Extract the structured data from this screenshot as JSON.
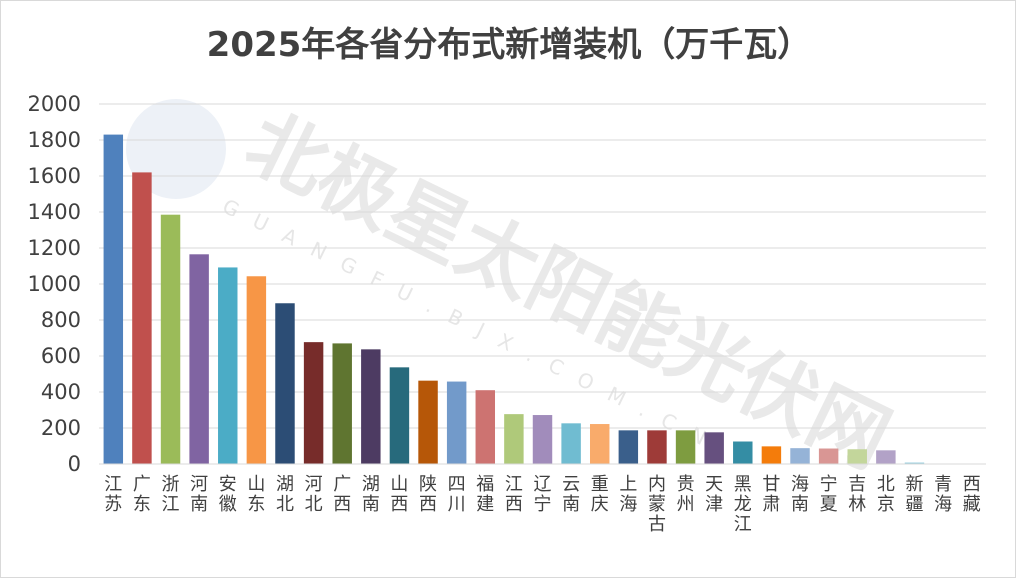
{
  "watermark": {
    "text": "北极星太阳能光伏网",
    "subtext": "GUANGFU.BJX.COM.CN"
  },
  "chart_data": {
    "type": "bar",
    "title": "2025年各省分布式新增装机（万千瓦）",
    "xlabel": "",
    "ylabel": "",
    "ylim": [
      0,
      2000
    ],
    "yticks": [
      0,
      200,
      400,
      600,
      800,
      1000,
      1200,
      1400,
      1600,
      1800,
      2000
    ],
    "grid": true,
    "categories": [
      "江苏",
      "广东",
      "浙江",
      "河南",
      "安徽",
      "山东",
      "湖北",
      "河北",
      "广西",
      "湖南",
      "山西",
      "陕西",
      "四川",
      "福建",
      "江西",
      "辽宁",
      "云南",
      "重庆",
      "上海",
      "内蒙古",
      "贵州",
      "天津",
      "黑龙江",
      "甘肃",
      "海南",
      "宁夏",
      "吉林",
      "北京",
      "新疆",
      "青海",
      "西藏"
    ],
    "values": [
      1830,
      1620,
      1385,
      1165,
      1092,
      1043,
      893,
      677,
      670,
      637,
      537,
      463,
      458,
      410,
      277,
      272,
      226,
      222,
      187,
      187,
      187,
      176,
      125,
      98,
      88,
      86,
      82,
      76,
      8,
      2,
      1
    ],
    "colors": [
      "#4f81bd",
      "#c0504d",
      "#9bbb59",
      "#8064a2",
      "#4bacc6",
      "#f79646",
      "#2c4d75",
      "#772c2a",
      "#5f7530",
      "#4d3b62",
      "#276a7c",
      "#b65708",
      "#729aca",
      "#cd7371",
      "#afc97a",
      "#a18cbb",
      "#70bcd1",
      "#f9ab6b",
      "#3a5f8b",
      "#9e3b38",
      "#7e9c40",
      "#66507f",
      "#348da4",
      "#f47c0b",
      "#95b3d7",
      "#d99694",
      "#c3d69b",
      "#b2a2c7",
      "#93cddd",
      "#fac090",
      "#8eb4e3"
    ]
  }
}
